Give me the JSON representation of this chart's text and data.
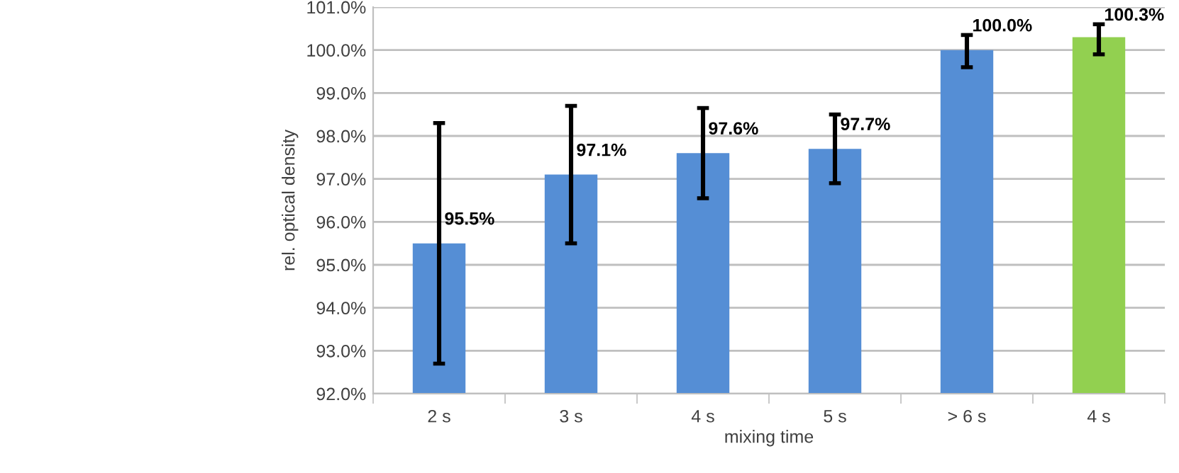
{
  "chart_data": {
    "type": "bar",
    "xlabel": "mixing time",
    "ylabel": "rel. optical density",
    "categories": [
      "2 s",
      "3 s",
      "4 s",
      "5 s",
      "> 6 s",
      "4 s"
    ],
    "values": [
      95.5,
      97.1,
      97.6,
      97.7,
      100.0,
      100.3
    ],
    "colors": [
      "#558ed5",
      "#558ed5",
      "#558ed5",
      "#558ed5",
      "#558ed5",
      "#92d050"
    ],
    "errors": [
      [
        92.7,
        98.3
      ],
      [
        95.5,
        98.7
      ],
      [
        96.55,
        98.65
      ],
      [
        96.9,
        98.5
      ],
      [
        99.6,
        100.35
      ],
      [
        99.9,
        100.6
      ]
    ],
    "value_labels": [
      "95.5%",
      "97.1%",
      "97.6%",
      "97.7%",
      "100.0%",
      "100.3%"
    ],
    "ylim": [
      92,
      101
    ],
    "yticks": [
      {
        "value": 92,
        "label": "92.0%"
      },
      {
        "value": 93,
        "label": "93.0%"
      },
      {
        "value": 94,
        "label": "94.0%"
      },
      {
        "value": 95,
        "label": "95.0%"
      },
      {
        "value": 96,
        "label": "96.0%"
      },
      {
        "value": 97,
        "label": "97.0%"
      },
      {
        "value": 98,
        "label": "98.0%"
      },
      {
        "value": 99,
        "label": "99.0%"
      },
      {
        "value": 100,
        "label": "100.0%"
      },
      {
        "value": 101,
        "label": "101.0%"
      }
    ],
    "grid": "y",
    "legend": false
  }
}
